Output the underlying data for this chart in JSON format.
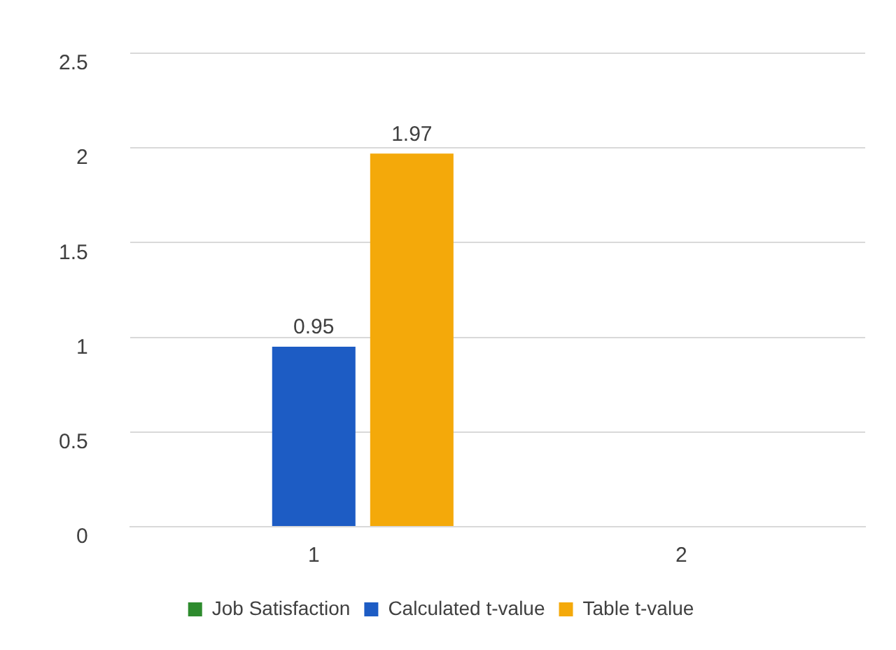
{
  "chart_data": {
    "type": "bar",
    "categories": [
      "1",
      "2"
    ],
    "series": [
      {
        "name": "Job Satisfaction",
        "color": "#2e8b2e",
        "values": [
          null,
          null
        ]
      },
      {
        "name": "Calculated t-value",
        "color": "#1d5cc4",
        "values": [
          0.95,
          null
        ]
      },
      {
        "name": "Table t-value",
        "color": "#f4a90a",
        "values": [
          1.97,
          null
        ]
      }
    ],
    "ylim": [
      0,
      2.5
    ],
    "yticks": [
      0,
      0.5,
      1,
      1.5,
      2,
      2.5
    ],
    "grid": "y",
    "legend": "bottom",
    "data_labels": true
  }
}
